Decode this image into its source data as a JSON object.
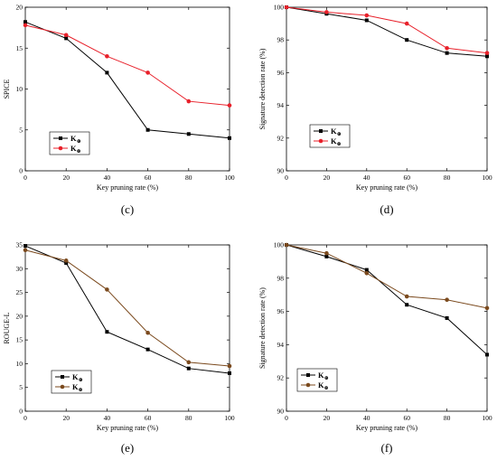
{
  "chart_data": [
    {
      "type": "line",
      "caption": "(c)",
      "xlabel": "Key pruning rate (%)",
      "ylabel": "SPICE",
      "x": [
        0,
        20,
        40,
        60,
        80,
        100
      ],
      "xlim": [
        0,
        100
      ],
      "ylim": [
        0,
        20
      ],
      "xticks": [
        0,
        20,
        40,
        60,
        80,
        100
      ],
      "yticks": [
        0,
        5,
        10,
        15,
        20
      ],
      "legend": "bottom-left",
      "series": [
        {
          "name": "K",
          "sub": "⊕",
          "color": "#000000",
          "marker": "square",
          "values": [
            18.2,
            16.2,
            12.0,
            5.0,
            4.5,
            4.0
          ]
        },
        {
          "name": "K",
          "sub": "⊗",
          "color": "#e8202a",
          "marker": "circle",
          "values": [
            17.8,
            16.6,
            14.0,
            12.0,
            8.5,
            8.0
          ]
        }
      ]
    },
    {
      "type": "line",
      "caption": "(d)",
      "xlabel": "Key pruning rate (%)",
      "ylabel": "Signature detection rate (%)",
      "x": [
        0,
        20,
        40,
        60,
        80,
        100
      ],
      "xlim": [
        0,
        100
      ],
      "ylim": [
        90,
        100
      ],
      "xticks": [
        0,
        20,
        40,
        60,
        80,
        100
      ],
      "yticks": [
        90,
        92,
        94,
        96,
        98,
        100
      ],
      "legend": "bottom-left",
      "series": [
        {
          "name": "K",
          "sub": "⊕",
          "color": "#000000",
          "marker": "square",
          "values": [
            100,
            99.6,
            99.2,
            98.0,
            97.2,
            97.0
          ]
        },
        {
          "name": "K",
          "sub": "⊗",
          "color": "#e8202a",
          "marker": "circle",
          "values": [
            100,
            99.7,
            99.5,
            99.0,
            97.5,
            97.2
          ]
        }
      ]
    },
    {
      "type": "line",
      "caption": "(e)",
      "xlabel": "Key pruning rate (%)",
      "ylabel": "ROUGE-L",
      "x": [
        0,
        20,
        40,
        60,
        80,
        100
      ],
      "xlim": [
        0,
        100
      ],
      "ylim": [
        0,
        35
      ],
      "xticks": [
        0,
        20,
        40,
        60,
        80,
        100
      ],
      "yticks": [
        0,
        5,
        10,
        15,
        20,
        25,
        30,
        35
      ],
      "legend": "bottom-right",
      "series": [
        {
          "name": "K",
          "sub": "⊕",
          "color": "#000000",
          "marker": "square",
          "values": [
            34.8,
            31.2,
            16.7,
            13.0,
            9.0,
            8.0
          ]
        },
        {
          "name": "K",
          "sub": "⊗",
          "color": "#7b4a1e",
          "marker": "circle",
          "values": [
            33.9,
            31.7,
            25.6,
            16.5,
            10.3,
            9.5
          ]
        }
      ]
    },
    {
      "type": "line",
      "caption": "(f)",
      "xlabel": "Key pruning rate (%)",
      "ylabel": "Signature detection rate (%)",
      "x": [
        0,
        20,
        40,
        60,
        80,
        100
      ],
      "xlim": [
        0,
        100
      ],
      "ylim": [
        90,
        100
      ],
      "xticks": [
        0,
        20,
        40,
        60,
        80,
        100
      ],
      "yticks": [
        90,
        92,
        94,
        96,
        98,
        100
      ],
      "legend": "bottom-left",
      "series": [
        {
          "name": "K",
          "sub": "⊕",
          "color": "#000000",
          "marker": "square",
          "values": [
            100,
            99.3,
            98.5,
            96.4,
            95.6,
            93.4
          ]
        },
        {
          "name": "K",
          "sub": "⊗",
          "color": "#7b4a1e",
          "marker": "circle",
          "values": [
            100,
            99.5,
            98.3,
            96.9,
            96.7,
            96.2
          ]
        }
      ]
    }
  ]
}
